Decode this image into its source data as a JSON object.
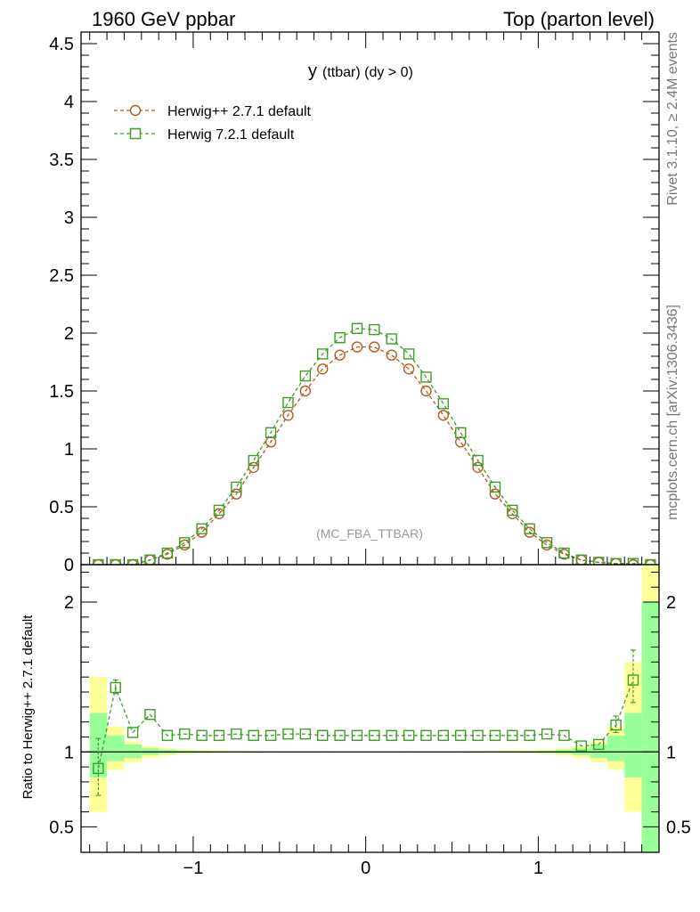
{
  "header": {
    "left": "1960 GeV ppbar",
    "right": "Top (parton level)"
  },
  "side_text": {
    "top": "Rivet 3.1.10, ≥ 2.4M events",
    "bottom": "mcplots.cern.ch [arXiv:1306.3436]"
  },
  "colors": {
    "herwigpp": "#b35a1f",
    "herwig7": "#3d9e25",
    "band_yellow": "#ffff99",
    "band_green": "#99ff99"
  },
  "chart_data": [
    {
      "type": "line",
      "title": "y",
      "title_sub": "(ttbar) (dy > 0)",
      "watermark": "(MC_FBA_TTBAR)",
      "xlim": [
        -1.65,
        1.7
      ],
      "ylim": [
        0,
        4.6
      ],
      "y_ticks": [
        0,
        0.5,
        1,
        1.5,
        2,
        2.5,
        3,
        3.5,
        4,
        4.5
      ],
      "y_tick_labels": [
        "0",
        "0.5",
        "1",
        "1.5",
        "2",
        "2.5",
        "3",
        "3.5",
        "4",
        "4.5"
      ],
      "legend_position": "top-left",
      "x": [
        -1.55,
        -1.45,
        -1.35,
        -1.25,
        -1.15,
        -1.05,
        -0.95,
        -0.85,
        -0.75,
        -0.65,
        -0.55,
        -0.45,
        -0.35,
        -0.25,
        -0.15,
        -0.05,
        0.05,
        0.15,
        0.25,
        0.35,
        0.45,
        0.55,
        0.65,
        0.75,
        0.85,
        0.95,
        1.05,
        1.15,
        1.25,
        1.35,
        1.45,
        1.55,
        1.65
      ],
      "series": [
        {
          "name": "Herwig++ 2.7.1 default",
          "marker": "circle",
          "values": [
            0.0,
            0.0,
            0.0,
            0.04,
            0.09,
            0.17,
            0.28,
            0.44,
            0.61,
            0.84,
            1.06,
            1.29,
            1.5,
            1.69,
            1.81,
            1.88,
            1.88,
            1.81,
            1.69,
            1.5,
            1.29,
            1.06,
            0.84,
            0.61,
            0.44,
            0.28,
            0.17,
            0.09,
            0.04,
            0.02,
            0.01,
            0.0,
            0.0
          ]
        },
        {
          "name": "Herwig 7.2.1 default",
          "marker": "square",
          "values": [
            0.0,
            0.0,
            0.0,
            0.04,
            0.1,
            0.19,
            0.31,
            0.47,
            0.67,
            0.9,
            1.14,
            1.4,
            1.63,
            1.82,
            1.96,
            2.04,
            2.03,
            1.95,
            1.82,
            1.62,
            1.39,
            1.14,
            0.9,
            0.67,
            0.47,
            0.31,
            0.19,
            0.1,
            0.04,
            0.02,
            0.01,
            0.01,
            0.0
          ]
        }
      ]
    },
    {
      "type": "line",
      "ylabel": "Ratio to Herwig++ 2.7.1 default",
      "xlim": [
        -1.65,
        1.7
      ],
      "ylim": [
        0.33,
        2.25
      ],
      "x_ticks": [
        -1,
        0,
        1
      ],
      "x_tick_labels": [
        "−1",
        "0",
        "1"
      ],
      "y_ticks": [
        0.5,
        1,
        2
      ],
      "y_tick_labels": [
        "0.5",
        "1",
        "2"
      ],
      "reference_line": 1,
      "bins": [
        -1.6,
        -1.5,
        -1.4,
        -1.3,
        -1.2,
        -1.1,
        -1.0,
        -0.9,
        -0.8,
        -0.7,
        -0.6,
        -0.5,
        -0.4,
        -0.3,
        -0.2,
        -0.1,
        0.0,
        0.1,
        0.2,
        0.3,
        0.4,
        0.5,
        0.6,
        0.7,
        0.8,
        0.9,
        1.0,
        1.1,
        1.2,
        1.3,
        1.4,
        1.5,
        1.6,
        1.7
      ],
      "band_yellow": [
        [
          0.6,
          1.5
        ],
        [
          0.88,
          1.17
        ],
        [
          0.93,
          1.07
        ],
        [
          0.96,
          1.04
        ],
        [
          0.975,
          1.025
        ],
        [
          0.985,
          1.015
        ],
        [
          0.99,
          1.01
        ],
        [
          0.992,
          1.008
        ],
        [
          0.994,
          1.006
        ],
        [
          0.995,
          1.005
        ],
        [
          0.996,
          1.004
        ],
        [
          0.997,
          1.003
        ],
        [
          0.997,
          1.003
        ],
        [
          0.998,
          1.002
        ],
        [
          0.998,
          1.002
        ],
        [
          0.998,
          1.002
        ],
        [
          0.998,
          1.002
        ],
        [
          0.998,
          1.002
        ],
        [
          0.998,
          1.002
        ],
        [
          0.997,
          1.003
        ],
        [
          0.997,
          1.003
        ],
        [
          0.996,
          1.004
        ],
        [
          0.995,
          1.005
        ],
        [
          0.994,
          1.006
        ],
        [
          0.992,
          1.008
        ],
        [
          0.99,
          1.01
        ],
        [
          0.985,
          1.015
        ],
        [
          0.975,
          1.025
        ],
        [
          0.96,
          1.04
        ],
        [
          0.93,
          1.07
        ],
        [
          0.88,
          1.17
        ],
        [
          0.6,
          1.6
        ],
        [
          0.3,
          2.3
        ]
      ],
      "band_green": [
        [
          0.83,
          1.26
        ],
        [
          0.94,
          1.11
        ],
        [
          0.96,
          1.05
        ],
        [
          0.98,
          1.025
        ],
        [
          0.988,
          1.015
        ],
        [
          0.993,
          1.008
        ],
        [
          0.995,
          1.006
        ],
        [
          0.996,
          1.005
        ],
        [
          0.997,
          1.004
        ],
        [
          0.997,
          1.003
        ],
        [
          0.998,
          1.003
        ],
        [
          0.998,
          1.002
        ],
        [
          0.998,
          1.002
        ],
        [
          0.999,
          1.002
        ],
        [
          0.999,
          1.001
        ],
        [
          0.999,
          1.001
        ],
        [
          0.999,
          1.001
        ],
        [
          0.999,
          1.001
        ],
        [
          0.999,
          1.002
        ],
        [
          0.998,
          1.002
        ],
        [
          0.998,
          1.002
        ],
        [
          0.998,
          1.003
        ],
        [
          0.997,
          1.003
        ],
        [
          0.997,
          1.004
        ],
        [
          0.996,
          1.005
        ],
        [
          0.995,
          1.006
        ],
        [
          0.993,
          1.008
        ],
        [
          0.988,
          1.015
        ],
        [
          0.98,
          1.025
        ],
        [
          0.96,
          1.05
        ],
        [
          0.94,
          1.11
        ],
        [
          0.83,
          1.26
        ],
        [
          0.3,
          2.0
        ]
      ],
      "series": [
        {
          "name": "Herwig 7.2.1 default",
          "marker": "square",
          "x": [
            -1.55,
            -1.45,
            -1.35,
            -1.25,
            -1.15,
            -1.05,
            -0.95,
            -0.85,
            -0.75,
            -0.65,
            -0.55,
            -0.45,
            -0.35,
            -0.25,
            -0.15,
            -0.05,
            0.05,
            0.15,
            0.25,
            0.35,
            0.45,
            0.55,
            0.65,
            0.75,
            0.85,
            0.95,
            1.05,
            1.15,
            1.25,
            1.35,
            1.45,
            1.55
          ],
          "values": [
            0.89,
            1.43,
            1.13,
            1.25,
            1.11,
            1.12,
            1.11,
            1.11,
            1.12,
            1.11,
            1.11,
            1.12,
            1.12,
            1.11,
            1.11,
            1.11,
            1.11,
            1.11,
            1.11,
            1.11,
            1.11,
            1.11,
            1.11,
            1.11,
            1.11,
            1.11,
            1.12,
            1.11,
            1.04,
            1.05,
            1.18,
            1.48
          ],
          "err_low": [
            0.18,
            0.04,
            0.02,
            0.01,
            0.01,
            0.005,
            0.005,
            0.005,
            0.005,
            0.005,
            0.005,
            0.005,
            0.005,
            0.005,
            0.005,
            0.005,
            0.005,
            0.005,
            0.005,
            0.005,
            0.005,
            0.005,
            0.005,
            0.005,
            0.005,
            0.005,
            0.005,
            0.01,
            0.01,
            0.02,
            0.05,
            0.15
          ],
          "err_high": [
            0.2,
            0.05,
            0.02,
            0.01,
            0.01,
            0.005,
            0.005,
            0.005,
            0.005,
            0.005,
            0.005,
            0.005,
            0.005,
            0.005,
            0.005,
            0.005,
            0.005,
            0.005,
            0.005,
            0.005,
            0.005,
            0.005,
            0.005,
            0.005,
            0.005,
            0.005,
            0.005,
            0.01,
            0.01,
            0.02,
            0.06,
            0.2
          ]
        }
      ]
    }
  ]
}
